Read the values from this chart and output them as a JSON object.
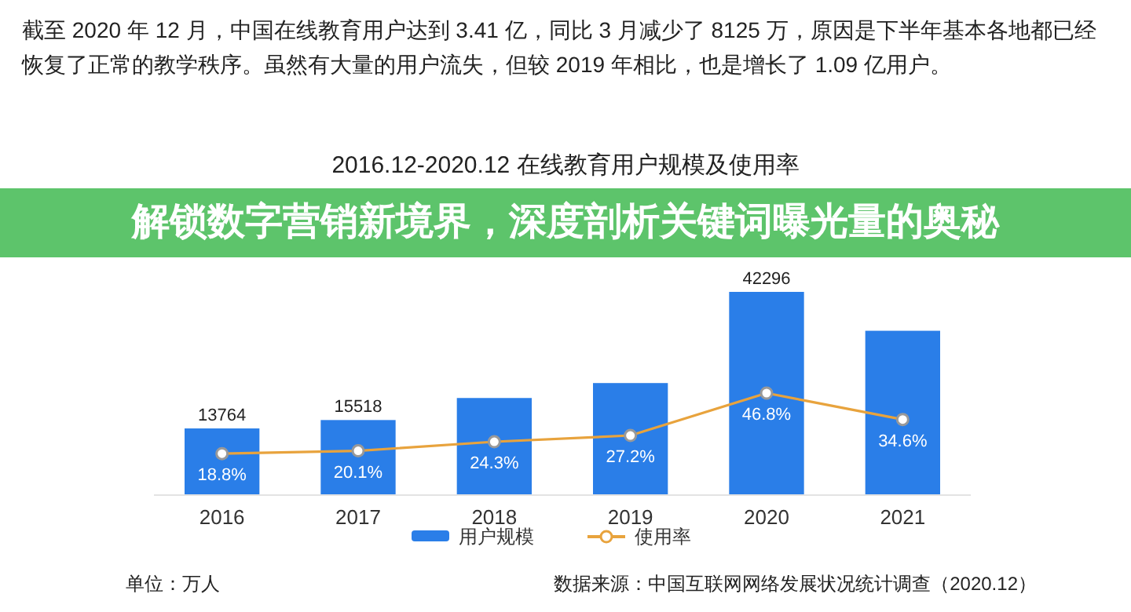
{
  "chart_data": {
    "type": "bar",
    "title": "2016.12-2020.12 在线教育用户规模及使用率",
    "categories": [
      "2016",
      "2017",
      "2018",
      "2019",
      "2020",
      "2021"
    ],
    "series": [
      {
        "name": "用户规模",
        "color": "#2a7ee8",
        "values": [
          13764,
          15518,
          20123,
          23246,
          42296,
          34171
        ],
        "value_labels": [
          "13764",
          "15518",
          null,
          null,
          "42296",
          null
        ]
      },
      {
        "name": "使用率",
        "type": "line",
        "axis": "y2",
        "color": "#e8a33d",
        "marker": "circle",
        "values": [
          18.8,
          20.1,
          24.3,
          27.2,
          46.8,
          34.6
        ],
        "value_labels": [
          "18.8%",
          "20.1%",
          "24.3%",
          "27.2%",
          "46.8%",
          "34.6%"
        ]
      }
    ],
    "legend": "bottom",
    "annotations": [
      "截至 2020 年 12 月，中国在线教育用户达到 3.41 亿，同比 3 月减少了 8125 万，原因是下半年基本各地都已经恢复了正常的教学秩序。虽然有大量的用户流失，但较 2019 年相比，也是增长了 1.09 亿用户。",
      "解锁数字营销新境界，深度剖析关键词曝光量的奥秘",
      "单位：万人",
      "数据来源：中国互联网网络发展状况统计调查（2020.12）"
    ]
  }
}
